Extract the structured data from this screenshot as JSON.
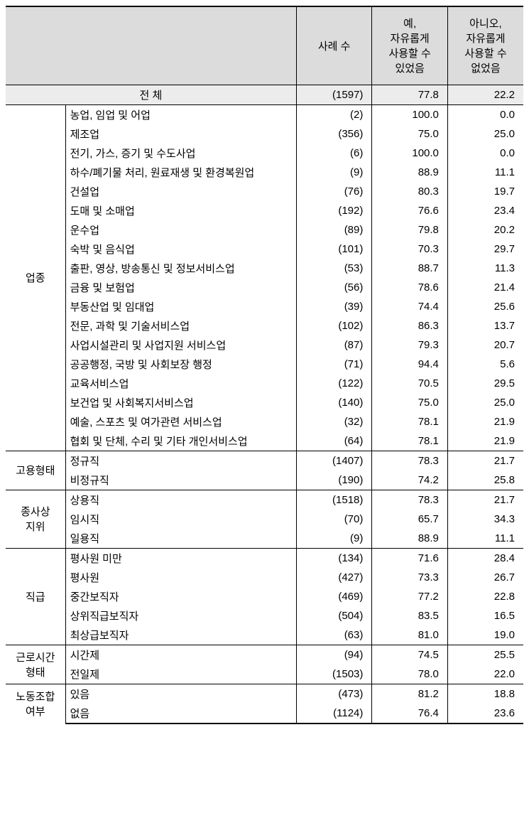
{
  "columns": {
    "blank": "",
    "count": "사례 수",
    "yes": "예,\n자유롭게\n사용할 수\n있었음",
    "no": "아니오,\n자유롭게\n사용할 수\n없었음"
  },
  "total": {
    "label": "전 체",
    "count": "(1597)",
    "yes": "77.8",
    "no": "22.2"
  },
  "groups": [
    {
      "name": "업종",
      "rows": [
        {
          "label": "농업, 임업 및 어업",
          "count": "(2)",
          "yes": "100.0",
          "no": "0.0"
        },
        {
          "label": "제조업",
          "count": "(356)",
          "yes": "75.0",
          "no": "25.0"
        },
        {
          "label": "전기, 가스, 증기 및 수도사업",
          "count": "(6)",
          "yes": "100.0",
          "no": "0.0"
        },
        {
          "label": "하수/폐기물 처리, 원료재생 및 환경복원업",
          "count": "(9)",
          "yes": "88.9",
          "no": "11.1"
        },
        {
          "label": "건설업",
          "count": "(76)",
          "yes": "80.3",
          "no": "19.7"
        },
        {
          "label": "도매 및 소매업",
          "count": "(192)",
          "yes": "76.6",
          "no": "23.4"
        },
        {
          "label": "운수업",
          "count": "(89)",
          "yes": "79.8",
          "no": "20.2"
        },
        {
          "label": "숙박 및 음식업",
          "count": "(101)",
          "yes": "70.3",
          "no": "29.7"
        },
        {
          "label": "출판, 영상, 방송통신 및 정보서비스업",
          "count": "(53)",
          "yes": "88.7",
          "no": "11.3"
        },
        {
          "label": "금융 및 보험업",
          "count": "(56)",
          "yes": "78.6",
          "no": "21.4"
        },
        {
          "label": "부동산업 및 임대업",
          "count": "(39)",
          "yes": "74.4",
          "no": "25.6"
        },
        {
          "label": "전문, 과학 및 기술서비스업",
          "count": "(102)",
          "yes": "86.3",
          "no": "13.7"
        },
        {
          "label": "사업시설관리 및 사업지원 서비스업",
          "count": "(87)",
          "yes": "79.3",
          "no": "20.7"
        },
        {
          "label": "공공행정, 국방 및 사회보장 행정",
          "count": "(71)",
          "yes": "94.4",
          "no": "5.6"
        },
        {
          "label": "교육서비스업",
          "count": "(122)",
          "yes": "70.5",
          "no": "29.5"
        },
        {
          "label": "보건업 및 사회복지서비스업",
          "count": "(140)",
          "yes": "75.0",
          "no": "25.0"
        },
        {
          "label": "예술, 스포츠 및 여가관련 서비스업",
          "count": "(32)",
          "yes": "78.1",
          "no": "21.9"
        },
        {
          "label": "협회 및 단체, 수리 및 기타 개인서비스업",
          "count": "(64)",
          "yes": "78.1",
          "no": "21.9"
        }
      ]
    },
    {
      "name": "고용형태",
      "rows": [
        {
          "label": "정규직",
          "count": "(1407)",
          "yes": "78.3",
          "no": "21.7"
        },
        {
          "label": "비정규직",
          "count": "(190)",
          "yes": "74.2",
          "no": "25.8"
        }
      ]
    },
    {
      "name": "종사상\n지위",
      "rows": [
        {
          "label": "상용직",
          "count": "(1518)",
          "yes": "78.3",
          "no": "21.7"
        },
        {
          "label": "임시직",
          "count": "(70)",
          "yes": "65.7",
          "no": "34.3"
        },
        {
          "label": "일용직",
          "count": "(9)",
          "yes": "88.9",
          "no": "11.1"
        }
      ]
    },
    {
      "name": "직급",
      "rows": [
        {
          "label": "평사원 미만",
          "count": "(134)",
          "yes": "71.6",
          "no": "28.4"
        },
        {
          "label": "평사원",
          "count": "(427)",
          "yes": "73.3",
          "no": "26.7"
        },
        {
          "label": "중간보직자",
          "count": "(469)",
          "yes": "77.2",
          "no": "22.8"
        },
        {
          "label": "상위직급보직자",
          "count": "(504)",
          "yes": "83.5",
          "no": "16.5"
        },
        {
          "label": "최상급보직자",
          "count": "(63)",
          "yes": "81.0",
          "no": "19.0"
        }
      ]
    },
    {
      "name": "근로시간\n형태",
      "rows": [
        {
          "label": "시간제",
          "count": "(94)",
          "yes": "74.5",
          "no": "25.5"
        },
        {
          "label": "전일제",
          "count": "(1503)",
          "yes": "78.0",
          "no": "22.0"
        }
      ]
    },
    {
      "name": "노동조합\n여부",
      "rows": [
        {
          "label": "있음",
          "count": "(473)",
          "yes": "81.2",
          "no": "18.8"
        },
        {
          "label": "없음",
          "count": "(1124)",
          "yes": "76.4",
          "no": "23.6"
        }
      ]
    }
  ],
  "styling": {
    "font_family": "Malgun Gothic",
    "font_size_pt": 11,
    "header_bg": "#dcdcdc",
    "total_bg": "#ececec",
    "border_color": "#000000",
    "page_bg": "#ffffff"
  }
}
